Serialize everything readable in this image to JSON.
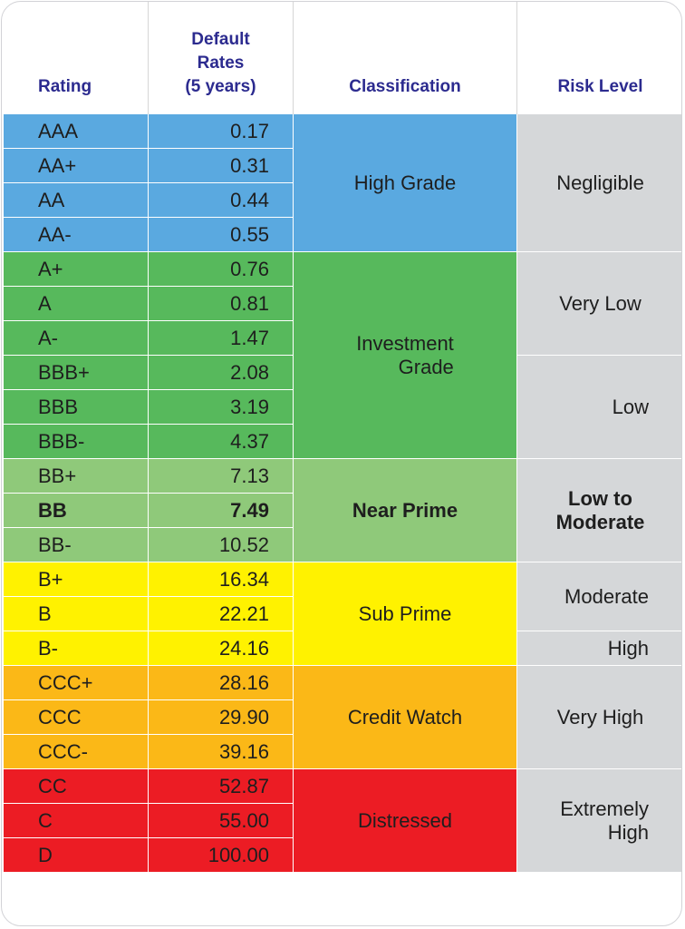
{
  "chart_data": {
    "type": "table",
    "headers": {
      "rating": "Rating",
      "rates_line1": "Default",
      "rates_line2": "Rates",
      "rates_line3": "(5 years)",
      "classification": "Classification",
      "risk": "Risk Level"
    },
    "rows": [
      {
        "rating": "AAA",
        "rate": "0.17"
      },
      {
        "rating": "AA+",
        "rate": "0.31"
      },
      {
        "rating": "AA",
        "rate": "0.44"
      },
      {
        "rating": "AA-",
        "rate": "0.55"
      },
      {
        "rating": "A+",
        "rate": "0.76"
      },
      {
        "rating": "A",
        "rate": "0.81"
      },
      {
        "rating": "A-",
        "rate": "1.47"
      },
      {
        "rating": "BBB+",
        "rate": "2.08"
      },
      {
        "rating": "BBB",
        "rate": "3.19"
      },
      {
        "rating": "BBB-",
        "rate": "4.37"
      },
      {
        "rating": "BB+",
        "rate": "7.13"
      },
      {
        "rating": "BB",
        "rate": "7.49"
      },
      {
        "rating": "BB-",
        "rate": "10.52"
      },
      {
        "rating": "B+",
        "rate": "16.34"
      },
      {
        "rating": "B",
        "rate": "22.21"
      },
      {
        "rating": "B-",
        "rate": "24.16"
      },
      {
        "rating": "CCC+",
        "rate": "28.16"
      },
      {
        "rating": "CCC",
        "rate": "29.90"
      },
      {
        "rating": "CCC-",
        "rate": "39.16"
      },
      {
        "rating": "CC",
        "rate": "52.87"
      },
      {
        "rating": "C",
        "rate": "55.00"
      },
      {
        "rating": "D",
        "rate": "100.00"
      }
    ],
    "classifications": [
      {
        "line1": "High Grade",
        "line2": ""
      },
      {
        "line1": "Investment",
        "line2": "Grade"
      },
      {
        "line1": "Near Prime",
        "line2": ""
      },
      {
        "line1": "Sub Prime",
        "line2": ""
      },
      {
        "line1": "Credit Watch",
        "line2": ""
      },
      {
        "line1": "Distressed",
        "line2": ""
      }
    ],
    "risk_levels": [
      {
        "line1": "Negligible",
        "line2": ""
      },
      {
        "line1": "Very Low",
        "line2": ""
      },
      {
        "line1": "Low",
        "line2": ""
      },
      {
        "line1": "Low to",
        "line2": "Moderate"
      },
      {
        "line1": "Moderate",
        "line2": ""
      },
      {
        "line1": "High",
        "line2": ""
      },
      {
        "line1": "Very High",
        "line2": ""
      },
      {
        "line1": "Extremely",
        "line2": "High"
      }
    ],
    "highlighted_rating": "BB",
    "colors": {
      "high_grade": "#5aa9e0",
      "investment_grade": "#57b95c",
      "near_prime": "#8fc97a",
      "sub_prime": "#fff200",
      "credit_watch": "#fbb817",
      "distressed": "#ec1c24",
      "risk_column": "#d5d7d9",
      "header_text": "#2c2b8f"
    }
  }
}
